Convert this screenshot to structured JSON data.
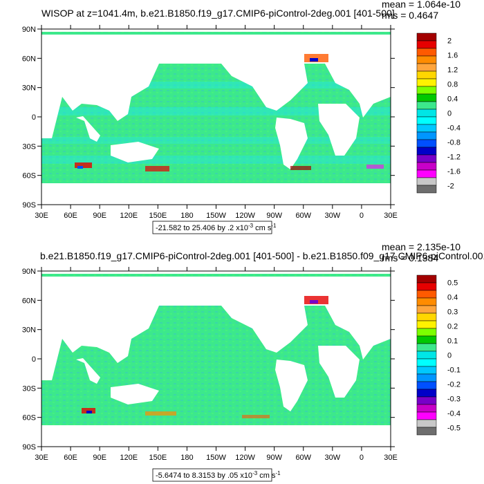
{
  "chart_data": [
    {
      "type": "heatmap",
      "title": "WISOP at z=1041.4m, b.e21.B1850.f19_g17.CMIP6-piControl-2deg.001 [401-500]",
      "stats": {
        "mean": "mean = 1.064e-10",
        "rms": "rms = 0.4647"
      },
      "x_ticks": [
        "30E",
        "60E",
        "90E",
        "120E",
        "150E",
        "180",
        "150W",
        "120W",
        "90W",
        "60W",
        "30W",
        "0",
        "30E"
      ],
      "y_ticks": [
        "90N",
        "60N",
        "30N",
        "0",
        "30S",
        "60S",
        "90S"
      ],
      "range_text": "-21.582 to 25.406 by .2 x10",
      "range_exp": "-3",
      "range_units": " cm s",
      "range_units_exp": "-1",
      "colorbar_labels": [
        "2",
        "1.6",
        "1.2",
        "0.8",
        "0.4",
        "0",
        "-0.4",
        "-0.8",
        "-1.2",
        "-1.6",
        "-2"
      ],
      "colorbar_min": -2,
      "colorbar_max": 2
    },
    {
      "type": "heatmap",
      "title": "b.e21.B1850.f19_g17.CMIP6-piControl-2deg.001 [401-500] - b.e21.B1850.f09_g17.CMIP6-piControl.001",
      "stats": {
        "mean": "mean = 2.135e-10",
        "rms": "rms = 0.1384"
      },
      "x_ticks": [
        "30E",
        "60E",
        "90E",
        "120E",
        "150E",
        "180",
        "150W",
        "120W",
        "90W",
        "60W",
        "30W",
        "0",
        "30E"
      ],
      "y_ticks": [
        "90N",
        "60N",
        "30N",
        "0",
        "30S",
        "60S",
        "90S"
      ],
      "range_text": "-5.6474 to 8.3153 by .05 x10",
      "range_exp": "-3",
      "range_units": " cm s",
      "range_units_exp": "-1",
      "colorbar_labels": [
        "0.5",
        "0.4",
        "0.3",
        "0.2",
        "0.1",
        "0",
        "-0.1",
        "-0.2",
        "-0.3",
        "-0.4",
        "-0.5"
      ],
      "colorbar_min": -0.5,
      "colorbar_max": 0.5
    }
  ],
  "colors": {
    "ocean_main": "#3ce88c",
    "ocean_light": "#37e8b8",
    "ocean_cyan": "#22e6e6",
    "land": "#ffffff",
    "palette": [
      "#a30000",
      "#e60000",
      "#ff5a00",
      "#ff8c00",
      "#ffa53c",
      "#ffd700",
      "#fff200",
      "#7cff00",
      "#00c800",
      "#3ce88c",
      "#00e6e6",
      "#00ffff",
      "#00c8ff",
      "#0096ff",
      "#0050ff",
      "#0000c8",
      "#7800c8",
      "#c800c8",
      "#ff00ff",
      "#c8c8c8",
      "#6e6e6e"
    ]
  }
}
